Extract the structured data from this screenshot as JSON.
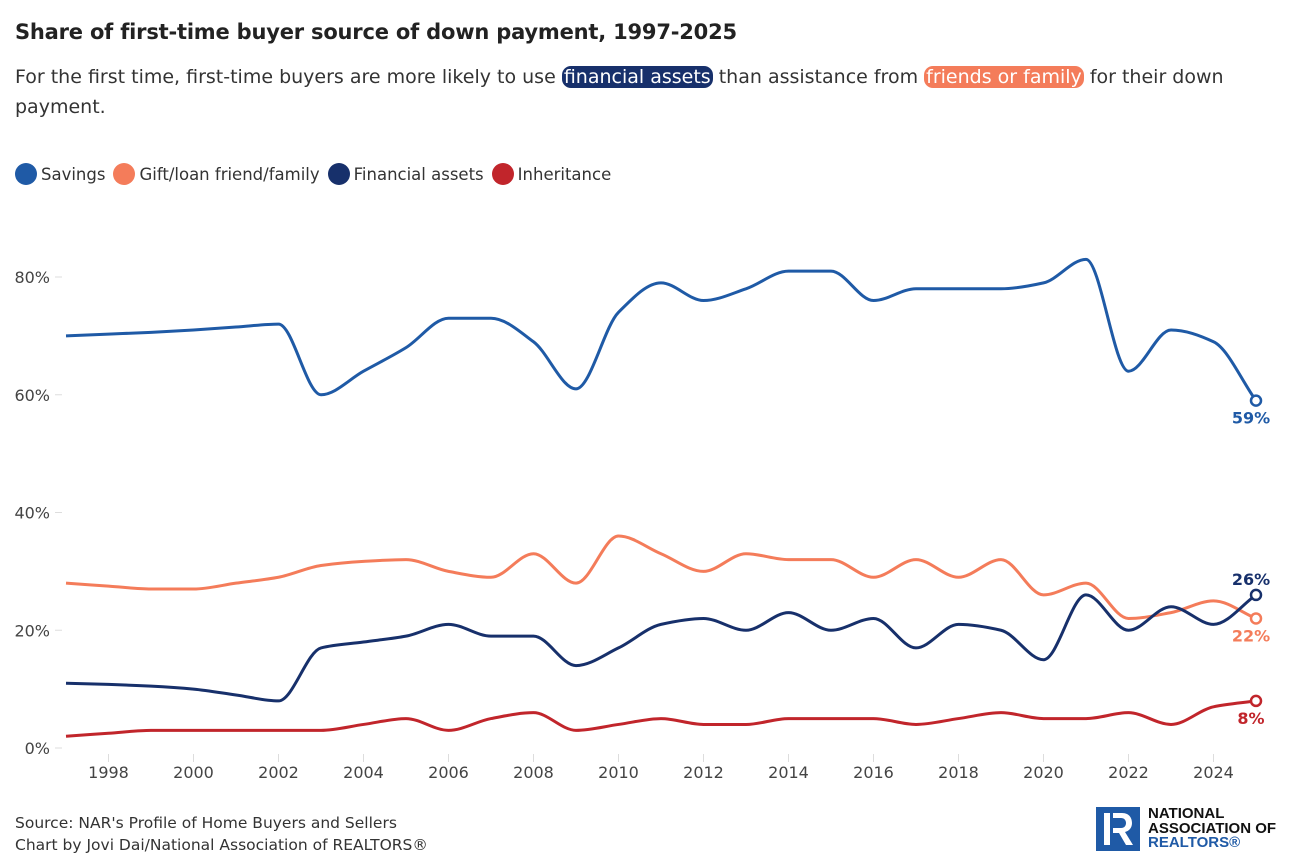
{
  "chart_data": {
    "type": "line",
    "title": "Share of first-time buyer source of down payment, 1997-2025",
    "subtitle": {
      "before": "For the first time, first-time buyers are more likely to use ",
      "highlight1": "financial assets",
      "middle": " than assistance from ",
      "highlight2": "friends or family",
      "after": " for their down payment."
    },
    "xlim": [
      1997,
      2025
    ],
    "ylim": [
      0,
      88
    ],
    "x_ticks": [
      1998,
      2000,
      2002,
      2004,
      2006,
      2008,
      2010,
      2012,
      2014,
      2016,
      2018,
      2020,
      2022,
      2024
    ],
    "y_ticks": [
      {
        "value": 0,
        "label": "0%"
      },
      {
        "value": 20,
        "label": "20%"
      },
      {
        "value": 40,
        "label": "40%"
      },
      {
        "value": 60,
        "label": "60%"
      },
      {
        "value": 80,
        "label": "80%"
      }
    ],
    "grid": false,
    "legend_position": "top-left",
    "x": [
      1997,
      1998,
      1999,
      2000,
      2001,
      2002,
      2003,
      2004,
      2005,
      2006,
      2007,
      2008,
      2009,
      2010,
      2011,
      2012,
      2013,
      2014,
      2015,
      2016,
      2017,
      2018,
      2019,
      2020,
      2021,
      2022,
      2023,
      2024,
      2025
    ],
    "series": [
      {
        "name": "Savings",
        "color": "#1f5aa6",
        "end_label": "59%",
        "label_pos": "below",
        "values": [
          70,
          70.3,
          70.6,
          71,
          71.5,
          72,
          60,
          64,
          68,
          73,
          73,
          69,
          61,
          74,
          79,
          76,
          78,
          81,
          81,
          76,
          78,
          78,
          78,
          79,
          83,
          64,
          71,
          69,
          59
        ]
      },
      {
        "name": "Gift/loan friend/family",
        "color": "#f47c5a",
        "end_label": "22%",
        "label_pos": "below",
        "values": [
          28,
          27.5,
          27,
          27,
          28,
          29,
          31,
          31.7,
          32,
          30,
          29,
          33,
          28,
          36,
          33,
          30,
          33,
          32,
          32,
          29,
          32,
          29,
          32,
          26,
          28,
          22,
          23,
          25,
          22
        ]
      },
      {
        "name": "Financial assets",
        "color": "#17306b",
        "end_label": "26%",
        "label_pos": "above",
        "values": [
          11,
          10.8,
          10.5,
          10,
          9,
          8,
          17,
          18,
          19,
          21,
          19,
          19,
          14,
          17,
          21,
          22,
          20,
          23,
          20,
          22,
          17,
          21,
          20,
          15,
          26,
          20,
          24,
          21,
          26
        ]
      },
      {
        "name": "Inheritance",
        "color": "#c1252b",
        "end_label": "8%",
        "label_pos": "below",
        "values": [
          2,
          2.5,
          3,
          3,
          3,
          3,
          3,
          4,
          5,
          3,
          5,
          6,
          3,
          4,
          5,
          4,
          4,
          5,
          5,
          5,
          4,
          5,
          6,
          5,
          5,
          6,
          4,
          7,
          8
        ]
      }
    ]
  },
  "footer": {
    "source": "Source: NAR's Profile of Home Buyers and Sellers",
    "credit": "Chart by Jovi Dai/National Association of REALTORS®"
  },
  "logo": {
    "line1": "NATIONAL",
    "line2": "ASSOCIATION OF",
    "line3": "REALTORS®"
  }
}
